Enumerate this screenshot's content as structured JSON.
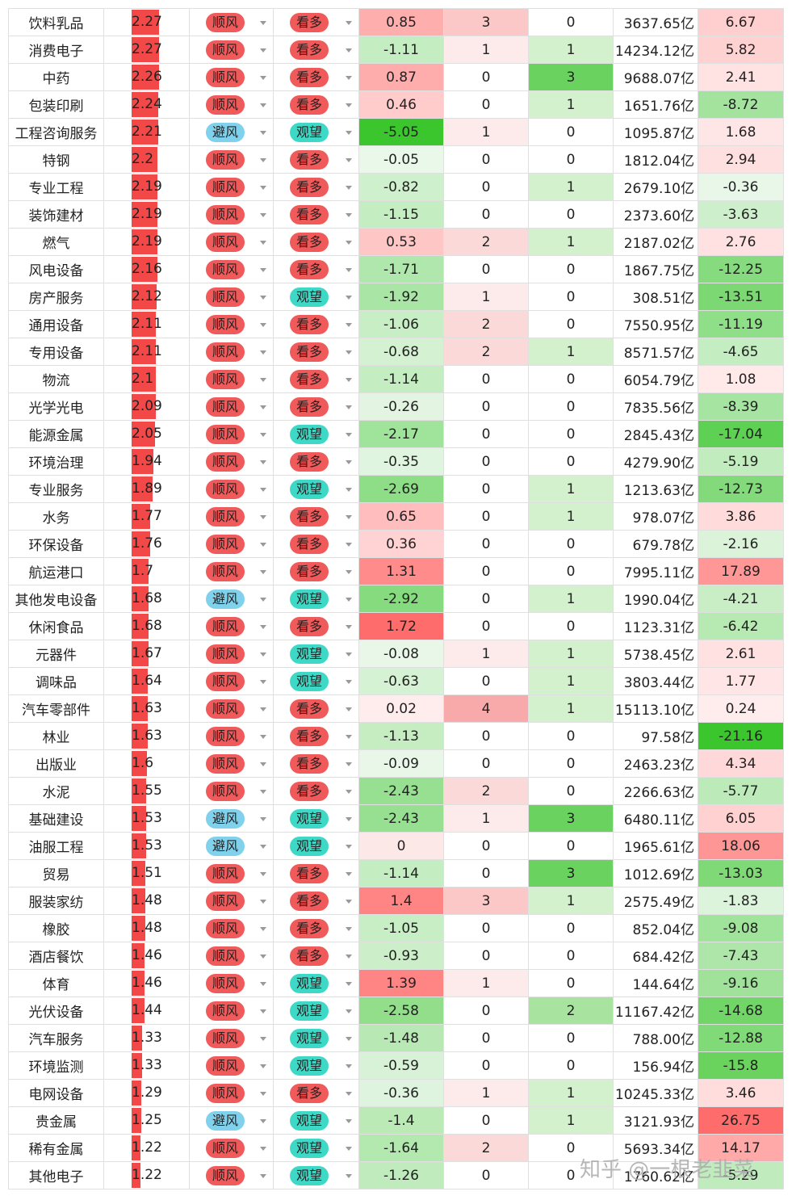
{
  "watermark": "知乎 @一根老韭菜",
  "tags": {
    "trend_up": "顺风",
    "trend_avoid": "避风",
    "view_bull": "看多",
    "view_wait": "观望"
  },
  "colors": {
    "bar": "#f24848",
    "pill_up": "#f05a5a",
    "pill_avoid": "#7fd1ec",
    "pill_wait": "#3ed9c6",
    "pill_bull": "#f05a5a"
  },
  "rows": [
    {
      "name": "饮料乳品",
      "score": "2.27",
      "trend": "顺风",
      "view": "看多",
      "chg": "0.85",
      "n1": "3",
      "n2": "0",
      "cap": "3637.65亿",
      "perf": "6.67"
    },
    {
      "name": "消费电子",
      "score": "2.27",
      "trend": "顺风",
      "view": "看多",
      "chg": "-1.11",
      "n1": "1",
      "n2": "1",
      "cap": "14234.12亿",
      "perf": "5.82"
    },
    {
      "name": "中药",
      "score": "2.26",
      "trend": "顺风",
      "view": "看多",
      "chg": "0.87",
      "n1": "0",
      "n2": "3",
      "cap": "9688.07亿",
      "perf": "2.41"
    },
    {
      "name": "包装印刷",
      "score": "2.24",
      "trend": "顺风",
      "view": "看多",
      "chg": "0.46",
      "n1": "0",
      "n2": "1",
      "cap": "1651.76亿",
      "perf": "-8.72"
    },
    {
      "name": "工程咨询服务",
      "score": "2.21",
      "trend": "避风",
      "view": "观望",
      "chg": "-5.05",
      "n1": "1",
      "n2": "0",
      "cap": "1095.87亿",
      "perf": "1.68"
    },
    {
      "name": "特钢",
      "score": "2.2",
      "trend": "顺风",
      "view": "看多",
      "chg": "-0.05",
      "n1": "0",
      "n2": "0",
      "cap": "1812.04亿",
      "perf": "2.94"
    },
    {
      "name": "专业工程",
      "score": "2.19",
      "trend": "顺风",
      "view": "看多",
      "chg": "-0.82",
      "n1": "0",
      "n2": "1",
      "cap": "2679.10亿",
      "perf": "-0.36"
    },
    {
      "name": "装饰建材",
      "score": "2.19",
      "trend": "顺风",
      "view": "看多",
      "chg": "-1.15",
      "n1": "0",
      "n2": "0",
      "cap": "2373.60亿",
      "perf": "-3.63"
    },
    {
      "name": "燃气",
      "score": "2.19",
      "trend": "顺风",
      "view": "看多",
      "chg": "0.53",
      "n1": "2",
      "n2": "1",
      "cap": "2187.02亿",
      "perf": "2.76"
    },
    {
      "name": "风电设备",
      "score": "2.16",
      "trend": "顺风",
      "view": "看多",
      "chg": "-1.71",
      "n1": "0",
      "n2": "0",
      "cap": "1867.75亿",
      "perf": "-12.25"
    },
    {
      "name": "房产服务",
      "score": "2.12",
      "trend": "顺风",
      "view": "观望",
      "chg": "-1.92",
      "n1": "1",
      "n2": "0",
      "cap": "308.51亿",
      "perf": "-13.51"
    },
    {
      "name": "通用设备",
      "score": "2.11",
      "trend": "顺风",
      "view": "看多",
      "chg": "-1.06",
      "n1": "2",
      "n2": "0",
      "cap": "7550.95亿",
      "perf": "-11.19"
    },
    {
      "name": "专用设备",
      "score": "2.11",
      "trend": "顺风",
      "view": "看多",
      "chg": "-0.68",
      "n1": "2",
      "n2": "1",
      "cap": "8571.57亿",
      "perf": "-4.65"
    },
    {
      "name": "物流",
      "score": "2.1",
      "trend": "顺风",
      "view": "看多",
      "chg": "-1.14",
      "n1": "0",
      "n2": "0",
      "cap": "6054.79亿",
      "perf": "1.08"
    },
    {
      "name": "光学光电",
      "score": "2.09",
      "trend": "顺风",
      "view": "看多",
      "chg": "-0.26",
      "n1": "0",
      "n2": "0",
      "cap": "7835.56亿",
      "perf": "-8.39"
    },
    {
      "name": "能源金属",
      "score": "2.05",
      "trend": "顺风",
      "view": "观望",
      "chg": "-2.17",
      "n1": "0",
      "n2": "0",
      "cap": "2845.43亿",
      "perf": "-17.04"
    },
    {
      "name": "环境治理",
      "score": "1.94",
      "trend": "顺风",
      "view": "看多",
      "chg": "-0.35",
      "n1": "0",
      "n2": "0",
      "cap": "4279.90亿",
      "perf": "-5.19"
    },
    {
      "name": "专业服务",
      "score": "1.89",
      "trend": "顺风",
      "view": "观望",
      "chg": "-2.69",
      "n1": "0",
      "n2": "1",
      "cap": "1213.63亿",
      "perf": "-12.73"
    },
    {
      "name": "水务",
      "score": "1.77",
      "trend": "顺风",
      "view": "看多",
      "chg": "0.65",
      "n1": "0",
      "n2": "1",
      "cap": "978.07亿",
      "perf": "3.86"
    },
    {
      "name": "环保设备",
      "score": "1.76",
      "trend": "顺风",
      "view": "看多",
      "chg": "0.36",
      "n1": "0",
      "n2": "0",
      "cap": "679.78亿",
      "perf": "-2.16"
    },
    {
      "name": "航运港口",
      "score": "1.7",
      "trend": "顺风",
      "view": "看多",
      "chg": "1.31",
      "n1": "0",
      "n2": "0",
      "cap": "7995.11亿",
      "perf": "17.89"
    },
    {
      "name": "其他发电设备",
      "score": "1.68",
      "trend": "避风",
      "view": "观望",
      "chg": "-2.92",
      "n1": "0",
      "n2": "1",
      "cap": "1990.04亿",
      "perf": "-4.21"
    },
    {
      "name": "休闲食品",
      "score": "1.68",
      "trend": "顺风",
      "view": "看多",
      "chg": "1.72",
      "n1": "0",
      "n2": "0",
      "cap": "1123.31亿",
      "perf": "-6.42"
    },
    {
      "name": "元器件",
      "score": "1.67",
      "trend": "顺风",
      "view": "观望",
      "chg": "-0.08",
      "n1": "1",
      "n2": "1",
      "cap": "5738.45亿",
      "perf": "2.61"
    },
    {
      "name": "调味品",
      "score": "1.64",
      "trend": "顺风",
      "view": "观望",
      "chg": "-0.63",
      "n1": "0",
      "n2": "1",
      "cap": "3803.44亿",
      "perf": "1.77"
    },
    {
      "name": "汽车零部件",
      "score": "1.63",
      "trend": "顺风",
      "view": "看多",
      "chg": "0.02",
      "n1": "4",
      "n2": "1",
      "cap": "15113.10亿",
      "perf": "0.24"
    },
    {
      "name": "林业",
      "score": "1.63",
      "trend": "顺风",
      "view": "看多",
      "chg": "-1.13",
      "n1": "0",
      "n2": "0",
      "cap": "97.58亿",
      "perf": "-21.16"
    },
    {
      "name": "出版业",
      "score": "1.6",
      "trend": "顺风",
      "view": "看多",
      "chg": "-0.09",
      "n1": "0",
      "n2": "0",
      "cap": "2463.23亿",
      "perf": "4.34"
    },
    {
      "name": "水泥",
      "score": "1.55",
      "trend": "顺风",
      "view": "看多",
      "chg": "-2.43",
      "n1": "2",
      "n2": "0",
      "cap": "2266.63亿",
      "perf": "-5.77"
    },
    {
      "name": "基础建设",
      "score": "1.53",
      "trend": "避风",
      "view": "观望",
      "chg": "-2.43",
      "n1": "1",
      "n2": "3",
      "cap": "6480.11亿",
      "perf": "6.05"
    },
    {
      "name": "油服工程",
      "score": "1.53",
      "trend": "避风",
      "view": "观望",
      "chg": "0",
      "n1": "0",
      "n2": "0",
      "cap": "1965.61亿",
      "perf": "18.06"
    },
    {
      "name": "贸易",
      "score": "1.51",
      "trend": "顺风",
      "view": "看多",
      "chg": "-1.14",
      "n1": "0",
      "n2": "3",
      "cap": "1012.69亿",
      "perf": "-13.03"
    },
    {
      "name": "服装家纺",
      "score": "1.48",
      "trend": "顺风",
      "view": "看多",
      "chg": "1.4",
      "n1": "3",
      "n2": "1",
      "cap": "2575.49亿",
      "perf": "-1.83"
    },
    {
      "name": "橡胶",
      "score": "1.48",
      "trend": "顺风",
      "view": "看多",
      "chg": "-1.05",
      "n1": "0",
      "n2": "0",
      "cap": "852.04亿",
      "perf": "-9.08"
    },
    {
      "name": "酒店餐饮",
      "score": "1.46",
      "trend": "顺风",
      "view": "看多",
      "chg": "-0.93",
      "n1": "0",
      "n2": "0",
      "cap": "684.42亿",
      "perf": "-7.43"
    },
    {
      "name": "体育",
      "score": "1.46",
      "trend": "顺风",
      "view": "观望",
      "chg": "1.39",
      "n1": "1",
      "n2": "0",
      "cap": "144.64亿",
      "perf": "-9.16"
    },
    {
      "name": "光伏设备",
      "score": "1.44",
      "trend": "顺风",
      "view": "观望",
      "chg": "-2.58",
      "n1": "0",
      "n2": "2",
      "cap": "11167.42亿",
      "perf": "-14.68"
    },
    {
      "name": "汽车服务",
      "score": "1.33",
      "trend": "顺风",
      "view": "观望",
      "chg": "-1.48",
      "n1": "0",
      "n2": "0",
      "cap": "788.00亿",
      "perf": "-12.88"
    },
    {
      "name": "环境监测",
      "score": "1.33",
      "trend": "顺风",
      "view": "观望",
      "chg": "-0.59",
      "n1": "0",
      "n2": "0",
      "cap": "156.94亿",
      "perf": "-15.8"
    },
    {
      "name": "电网设备",
      "score": "1.29",
      "trend": "顺风",
      "view": "看多",
      "chg": "-0.36",
      "n1": "1",
      "n2": "1",
      "cap": "10245.33亿",
      "perf": "3.46"
    },
    {
      "name": "贵金属",
      "score": "1.25",
      "trend": "避风",
      "view": "观望",
      "chg": "-1.4",
      "n1": "0",
      "n2": "1",
      "cap": "3121.93亿",
      "perf": "26.75"
    },
    {
      "name": "稀有金属",
      "score": "1.22",
      "trend": "顺风",
      "view": "观望",
      "chg": "-1.64",
      "n1": "2",
      "n2": "0",
      "cap": "5693.34亿",
      "perf": "14.17"
    },
    {
      "name": "其他电子",
      "score": "1.22",
      "trend": "顺风",
      "view": "观望",
      "chg": "-1.26",
      "n1": "0",
      "n2": "0",
      "cap": "1760.62亿",
      "perf": "-5.29"
    }
  ]
}
